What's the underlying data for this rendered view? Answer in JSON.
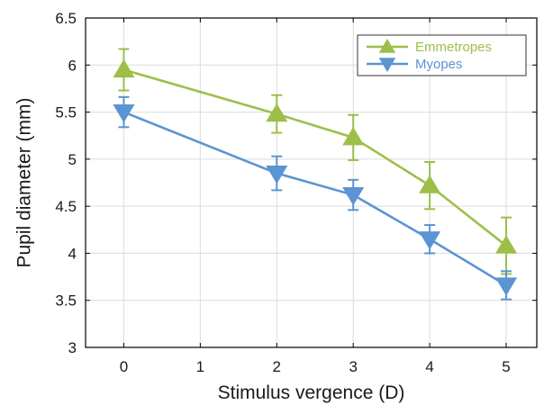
{
  "chart_data": {
    "type": "line",
    "xlabel": "Stimulus vergence (D)",
    "ylabel": "Pupil diameter (mm)",
    "xlim": [
      -0.5,
      5.4
    ],
    "ylim": [
      3,
      6.5
    ],
    "x_ticks": [
      0,
      1,
      2,
      3,
      4,
      5
    ],
    "y_ticks": [
      3,
      3.5,
      4,
      4.5,
      5,
      5.5,
      6,
      6.5
    ],
    "x_tick_labels": [
      "0",
      "1",
      "2",
      "3",
      "4",
      "5"
    ],
    "y_tick_labels": [
      "3",
      "3.5",
      "4",
      "4.5",
      "5",
      "5.5",
      "6",
      "6.5"
    ],
    "grid": true,
    "legend_position": "top-right",
    "series": [
      {
        "name": "Emmetropes",
        "color": "#9dbf4a",
        "marker": "triangle-up",
        "x": [
          0,
          2,
          3,
          4,
          5
        ],
        "y": [
          5.95,
          5.48,
          5.23,
          4.72,
          4.08
        ],
        "error": [
          0.22,
          0.2,
          0.24,
          0.25,
          0.3
        ]
      },
      {
        "name": "Myopes",
        "color": "#5b94d2",
        "marker": "triangle-down",
        "x": [
          0,
          2,
          3,
          4,
          5
        ],
        "y": [
          5.5,
          4.85,
          4.62,
          4.15,
          3.66
        ],
        "error": [
          0.16,
          0.18,
          0.16,
          0.15,
          0.15
        ]
      }
    ]
  }
}
